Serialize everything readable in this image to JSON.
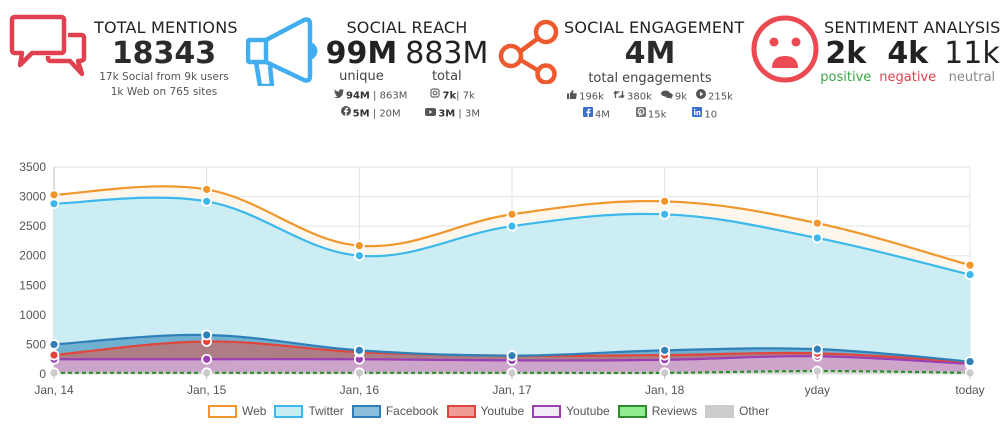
{
  "kpis": {
    "total_mentions": {
      "title": "TOTAL MENTIONS",
      "value": "18343",
      "line1": "17k Social from 9k users",
      "line2": "1k Web on 765 sites",
      "icon": "chat-bubbles-icon",
      "color": "#e0404f"
    },
    "social_reach": {
      "title": "SOCIAL REACH",
      "unique_value": "99M",
      "unique_label": "unique",
      "total_value": "883M",
      "total_label": "total",
      "icon": "megaphone-icon",
      "color": "#42aef0",
      "breakdown": [
        {
          "icon": "twitter-icon",
          "unique": "94M",
          "total": "863M"
        },
        {
          "icon": "instagram-icon",
          "unique": "7k",
          "total": "7k"
        },
        {
          "icon": "facebook-icon",
          "unique": "5M",
          "total": "20M"
        },
        {
          "icon": "youtube-icon",
          "unique": "3M",
          "total": "3M"
        }
      ]
    },
    "social_engagement": {
      "title": "SOCIAL ENGAGEMENT",
      "value": "4M",
      "label": "total engagements",
      "icon": "share-icon",
      "color": "#ee5a2f",
      "row1": [
        {
          "icon": "like-icon",
          "value": "196k"
        },
        {
          "icon": "retweet-icon",
          "value": "380k"
        },
        {
          "icon": "comments-icon",
          "value": "9k"
        },
        {
          "icon": "play-icon",
          "value": "215k"
        }
      ],
      "row2": [
        {
          "icon": "facebook-icon",
          "value": "4M"
        },
        {
          "icon": "pinterest-icon",
          "value": "15k"
        },
        {
          "icon": "linkedin-icon",
          "value": "10"
        }
      ]
    },
    "sentiment": {
      "title": "SENTIMENT ANALYSIS",
      "icon": "sad-face-icon",
      "color": "#ec4a52",
      "positive": {
        "value": "2k",
        "label": "positive",
        "color": "#3aa845"
      },
      "negative": {
        "value": "4k",
        "label": "negative",
        "color": "#e0404f"
      },
      "neutral": {
        "value": "11k",
        "label": "neutral",
        "color": "#888888"
      }
    }
  },
  "chart_data": {
    "type": "area",
    "stacked": true,
    "title": "",
    "xlabel": "",
    "ylabel": "",
    "categories": [
      "Jan, 14",
      "Jan, 15",
      "Jan, 16",
      "Jan, 17",
      "Jan, 18",
      "yday",
      "today"
    ],
    "ylim": [
      0,
      3500
    ],
    "yticks": [
      0,
      500,
      1000,
      1500,
      2000,
      2500,
      3000,
      3500
    ],
    "grid": true,
    "legend_position": "bottom",
    "series": [
      {
        "name": "Other",
        "color": "#cccccc",
        "fill": "#dddddd",
        "values": [
          20,
          20,
          20,
          20,
          20,
          50,
          20
        ]
      },
      {
        "name": "Reviews",
        "color": "#2e8b2e",
        "fill": "#90ee90",
        "values": [
          0,
          0,
          0,
          0,
          0,
          0,
          0
        ]
      },
      {
        "name": "Youtube",
        "color": "#9b3fb5",
        "fill": "#cfa8cf",
        "values": [
          230,
          230,
          230,
          210,
          220,
          250,
          150
        ]
      },
      {
        "name": "Youtube",
        "color": "#e0463c",
        "fill": "#b07a7e",
        "values": [
          70,
          300,
          120,
          80,
          80,
          50,
          30
        ]
      },
      {
        "name": "Facebook",
        "color": "#2f7fb8",
        "fill": "#6aaed0",
        "values": [
          180,
          110,
          30,
          0,
          80,
          70,
          10
        ]
      },
      {
        "name": "Twitter",
        "color": "#3cb8ec",
        "fill": "#c8ecf3",
        "values": [
          2380,
          2260,
          1600,
          2190,
          2300,
          1880,
          1470
        ]
      },
      {
        "name": "Web",
        "color": "#f0962a",
        "fill": "#fdf6ec",
        "values": [
          150,
          200,
          170,
          200,
          220,
          250,
          160
        ]
      }
    ]
  },
  "legend": [
    {
      "label": "Web",
      "border": "#f0962a",
      "fill": "#ffffff"
    },
    {
      "label": "Twitter",
      "border": "#3cb8ec",
      "fill": "#c8ecf3"
    },
    {
      "label": "Facebook",
      "border": "#2f7fb8",
      "fill": "#8dbedc"
    },
    {
      "label": "Youtube",
      "border": "#e0463c",
      "fill": "#ef9c96"
    },
    {
      "label": "Youtube",
      "border": "#9b3fb5",
      "fill": "#f3ecf7"
    },
    {
      "label": "Reviews",
      "border": "#2e8b2e",
      "fill": "#90ee90"
    },
    {
      "label": "Other",
      "border": "#cccccc",
      "fill": "#cccccc"
    }
  ]
}
